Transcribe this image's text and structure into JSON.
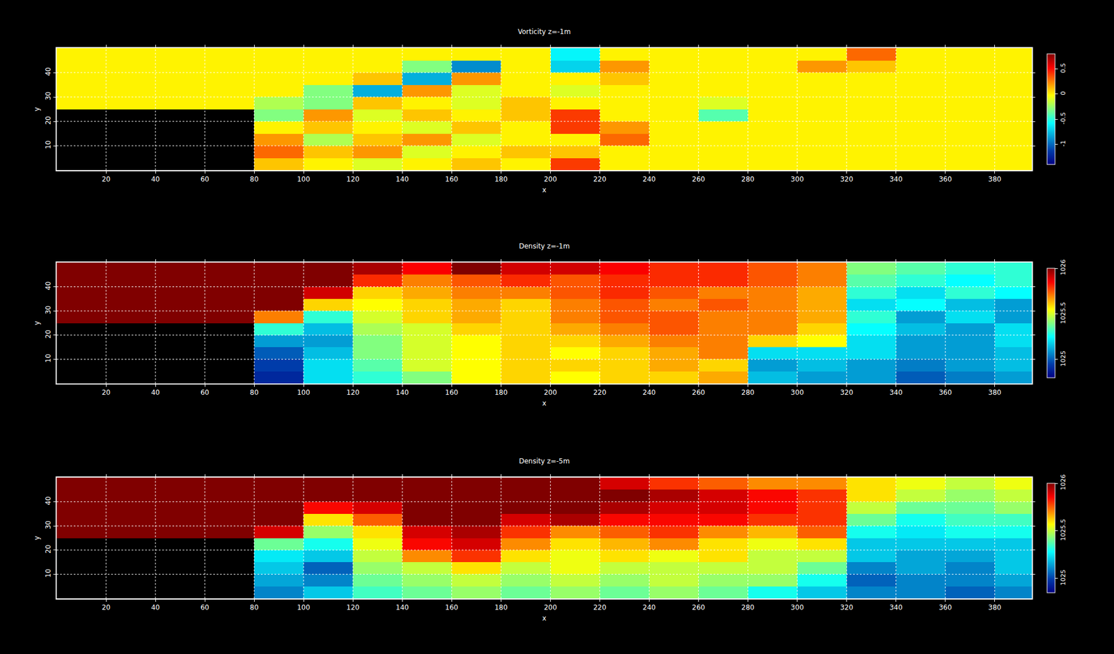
{
  "chart_data": [
    {
      "type": "heatmap",
      "title": "Vorticity z=-1m",
      "x_label": "x",
      "y_label": "y",
      "color": "Jet",
      "grid": true,
      "xlim": [
        0,
        395
      ],
      "ylim": [
        0,
        50
      ],
      "xticks": [
        20,
        40,
        60,
        80,
        100,
        120,
        140,
        160,
        180,
        200,
        220,
        240,
        260,
        280,
        300,
        320,
        340,
        360,
        380
      ],
      "yticks": [
        10,
        20,
        30,
        40
      ],
      "colorbar_range": [
        -1.4,
        0.8
      ],
      "colorbar_ticks": [
        -1,
        -0.5,
        0,
        0.5
      ],
      "x": [
        10,
        30,
        50,
        70,
        90,
        110,
        130,
        150,
        170,
        190,
        210,
        230,
        250,
        270,
        290,
        310,
        330,
        350,
        370,
        390
      ],
      "y": [
        2.5,
        7.5,
        12.5,
        17.5,
        22.5,
        27.5,
        32.5,
        37.5,
        42.5,
        47.5
      ],
      "cells": [
        [
          null,
          null,
          null,
          null,
          0.1,
          0,
          -0.1,
          0,
          0.1,
          0,
          0.4,
          0,
          0,
          0,
          0,
          0,
          0,
          0,
          0,
          0
        ],
        [
          null,
          null,
          null,
          null,
          0.3,
          0.1,
          0.2,
          -0.1,
          0,
          0.1,
          0.1,
          0,
          0,
          0,
          0,
          0,
          0,
          0,
          0,
          0
        ],
        [
          null,
          null,
          null,
          null,
          0.2,
          -0.2,
          0.1,
          0.2,
          -0.1,
          0,
          0,
          0.3,
          0,
          0,
          0,
          0,
          0,
          0,
          0,
          0
        ],
        [
          null,
          null,
          null,
          null,
          0,
          0.1,
          0,
          -0.1,
          0.1,
          0,
          0.4,
          0.2,
          0,
          0,
          0,
          0,
          0,
          0,
          0,
          0
        ],
        [
          null,
          null,
          null,
          null,
          -0.3,
          0.2,
          -0.1,
          0.1,
          0,
          0.1,
          0.4,
          0,
          0,
          -0.4,
          0,
          0,
          0,
          0,
          0,
          0
        ],
        [
          0,
          0,
          0,
          0,
          -0.2,
          -0.3,
          0.1,
          0,
          -0.1,
          0.1,
          0,
          0,
          0,
          -0.1,
          0,
          0,
          0,
          0,
          0,
          0
        ],
        [
          0,
          0,
          0,
          0,
          0,
          -0.3,
          -0.8,
          0.2,
          -0.1,
          0,
          -0.1,
          0,
          0,
          0,
          0,
          0,
          0,
          0,
          0,
          0
        ],
        [
          0,
          0,
          0,
          0,
          0,
          0,
          0.1,
          -0.8,
          0.2,
          0,
          0,
          0.1,
          0,
          0,
          0,
          0,
          0,
          0,
          0,
          0
        ],
        [
          0,
          0,
          0,
          0,
          0,
          0,
          0,
          -0.3,
          -0.9,
          0,
          -0.7,
          0.2,
          0,
          0,
          0,
          0.2,
          0.1,
          0,
          0,
          0
        ],
        [
          0,
          0,
          0,
          0,
          0,
          0,
          0,
          0,
          0,
          0,
          -0.6,
          0,
          0,
          0,
          0,
          0,
          0.3,
          0,
          0,
          0
        ]
      ]
    },
    {
      "type": "heatmap",
      "title": "Density z=-1m",
      "x_label": "x",
      "y_label": "y",
      "color": "Jet",
      "grid": true,
      "xlim": [
        0,
        395
      ],
      "ylim": [
        0,
        50
      ],
      "xticks": [
        20,
        40,
        60,
        80,
        100,
        120,
        140,
        160,
        180,
        200,
        220,
        240,
        260,
        280,
        300,
        320,
        340,
        360,
        380
      ],
      "yticks": [
        10,
        20,
        30,
        40
      ],
      "colorbar_range": [
        1024.8,
        1026
      ],
      "colorbar_ticks": [
        1025,
        1025.5,
        1026
      ],
      "x": [
        10,
        30,
        50,
        70,
        90,
        110,
        130,
        150,
        170,
        190,
        210,
        230,
        250,
        270,
        290,
        310,
        330,
        350,
        370,
        390
      ],
      "y": [
        2.5,
        7.5,
        12.5,
        17.5,
        22.5,
        27.5,
        32.5,
        37.5,
        42.5,
        47.5
      ],
      "cells": [
        [
          null,
          null,
          null,
          null,
          1024.9,
          1025.2,
          1025.3,
          1025.4,
          1025.55,
          1025.6,
          1025.55,
          1025.6,
          1025.6,
          1025.65,
          1025.15,
          1025.1,
          1025.1,
          1025.0,
          1025.05,
          1025.1
        ],
        [
          null,
          null,
          null,
          null,
          1024.95,
          1025.2,
          1025.35,
          1025.5,
          1025.55,
          1025.6,
          1025.6,
          1025.6,
          1025.65,
          1025.6,
          1025.1,
          1025.15,
          1025.1,
          1025.05,
          1025.1,
          1025.15
        ],
        [
          null,
          null,
          null,
          null,
          1025.0,
          1025.15,
          1025.4,
          1025.5,
          1025.55,
          1025.6,
          1025.55,
          1025.6,
          1025.65,
          1025.7,
          1025.2,
          1025.2,
          1025.2,
          1025.1,
          1025.1,
          1025.15
        ],
        [
          null,
          null,
          null,
          null,
          1025.1,
          1025.1,
          1025.4,
          1025.5,
          1025.55,
          1025.6,
          1025.6,
          1025.65,
          1025.7,
          1025.7,
          1025.6,
          1025.55,
          1025.2,
          1025.1,
          1025.1,
          1025.2
        ],
        [
          null,
          null,
          null,
          null,
          1025.3,
          1025.15,
          1025.45,
          1025.5,
          1025.6,
          1025.6,
          1025.65,
          1025.7,
          1025.75,
          1025.7,
          1025.7,
          1025.6,
          1025.25,
          1025.15,
          1025.1,
          1025.2
        ],
        [
          1026,
          1026,
          1026,
          1026,
          1025.7,
          1025.3,
          1025.5,
          1025.6,
          1025.65,
          1025.6,
          1025.7,
          1025.75,
          1025.75,
          1025.7,
          1025.7,
          1025.65,
          1025.3,
          1025.1,
          1025.2,
          1025.1
        ],
        [
          1026,
          1026,
          1026,
          1026,
          1026,
          1025.6,
          1025.55,
          1025.6,
          1025.65,
          1025.6,
          1025.7,
          1025.75,
          1025.7,
          1025.75,
          1025.7,
          1025.65,
          1025.2,
          1025.25,
          1025.15,
          1025.1
        ],
        [
          1026,
          1026,
          1026,
          1026,
          1026,
          1025.9,
          1025.6,
          1025.65,
          1025.7,
          1025.7,
          1025.75,
          1025.8,
          1025.75,
          1025.7,
          1025.7,
          1025.65,
          1025.3,
          1025.2,
          1025.3,
          1025.25
        ],
        [
          1026,
          1026,
          1026,
          1026,
          1026,
          1026,
          1025.8,
          1025.7,
          1025.75,
          1025.8,
          1025.75,
          1025.8,
          1025.8,
          1025.8,
          1025.75,
          1025.7,
          1025.35,
          1025.3,
          1025.25,
          1025.3
        ],
        [
          1026,
          1026,
          1026,
          1026,
          1026,
          1026,
          1025.95,
          1025.85,
          1026,
          1025.9,
          1025.9,
          1025.85,
          1025.8,
          1025.8,
          1025.75,
          1025.7,
          1025.4,
          1025.35,
          1025.3,
          1025.3
        ]
      ]
    },
    {
      "type": "heatmap",
      "title": "Density z=-5m",
      "x_label": "x",
      "y_label": "y",
      "color": "Jet",
      "grid": true,
      "xlim": [
        0,
        395
      ],
      "ylim": [
        0,
        50
      ],
      "xticks": [
        20,
        40,
        60,
        80,
        100,
        120,
        140,
        160,
        180,
        200,
        220,
        240,
        260,
        280,
        300,
        320,
        340,
        360,
        380
      ],
      "yticks": [
        10,
        20,
        30,
        40
      ],
      "colorbar_range": [
        1024.85,
        1026
      ],
      "colorbar_ticks": [
        1025,
        1025.5,
        1026
      ],
      "x": [
        10,
        30,
        50,
        70,
        90,
        110,
        130,
        150,
        170,
        190,
        210,
        230,
        250,
        270,
        290,
        310,
        330,
        350,
        370,
        390
      ],
      "y": [
        2.5,
        7.5,
        12.5,
        17.5,
        22.5,
        27.5,
        32.5,
        37.5,
        42.5,
        47.5
      ],
      "cells": [
        [
          null,
          null,
          null,
          null,
          1025.1,
          1025.2,
          1025.35,
          1025.4,
          1025.45,
          1025.4,
          1025.45,
          1025.4,
          1025.45,
          1025.4,
          1025.3,
          1025.2,
          1025.1,
          1025.1,
          1025.05,
          1025.1
        ],
        [
          null,
          null,
          null,
          null,
          1025.15,
          1025.1,
          1025.4,
          1025.45,
          1025.5,
          1025.45,
          1025.5,
          1025.45,
          1025.5,
          1025.45,
          1025.45,
          1025.3,
          1025.05,
          1025.1,
          1025.1,
          1025.15
        ],
        [
          null,
          null,
          null,
          null,
          1025.2,
          1025.05,
          1025.45,
          1025.5,
          1025.6,
          1025.5,
          1025.55,
          1025.5,
          1025.5,
          1025.5,
          1025.5,
          1025.4,
          1025.1,
          1025.15,
          1025.1,
          1025.2
        ],
        [
          null,
          null,
          null,
          null,
          1025.25,
          1025.2,
          1025.5,
          1025.7,
          1025.8,
          1025.6,
          1025.55,
          1025.6,
          1025.55,
          1025.6,
          1025.5,
          1025.5,
          1025.2,
          1025.15,
          1025.15,
          1025.2
        ],
        [
          null,
          null,
          null,
          null,
          1025.4,
          1025.3,
          1025.55,
          1025.85,
          1025.9,
          1025.7,
          1025.6,
          1025.65,
          1025.7,
          1025.6,
          1025.55,
          1025.6,
          1025.2,
          1025.2,
          1025.2,
          1025.2
        ],
        [
          1026,
          1026,
          1026,
          1026,
          1025.9,
          1025.45,
          1025.6,
          1025.9,
          1025.95,
          1025.8,
          1025.7,
          1025.75,
          1025.8,
          1025.7,
          1025.65,
          1025.75,
          1025.3,
          1025.25,
          1025.3,
          1025.3
        ],
        [
          1026,
          1026,
          1026,
          1026,
          1026,
          1025.6,
          1025.75,
          1026,
          1026,
          1025.9,
          1025.95,
          1025.85,
          1025.85,
          1025.85,
          1025.8,
          1025.8,
          1025.4,
          1025.3,
          1025.35,
          1025.35
        ],
        [
          1026,
          1026,
          1026,
          1026,
          1026,
          1025.85,
          1025.9,
          1026,
          1026,
          1026,
          1026,
          1025.95,
          1025.9,
          1025.9,
          1025.85,
          1025.8,
          1025.5,
          1025.4,
          1025.4,
          1025.45
        ],
        [
          1026,
          1026,
          1026,
          1026,
          1026,
          1026,
          1026,
          1026,
          1026,
          1026,
          1026,
          1026,
          1025.95,
          1025.9,
          1025.85,
          1025.8,
          1025.6,
          1025.5,
          1025.45,
          1025.5
        ],
        [
          1026,
          1026,
          1026,
          1026,
          1026,
          1026,
          1026,
          1026,
          1026,
          1026,
          1026,
          1025.9,
          1025.8,
          1025.75,
          1025.7,
          1025.7,
          1025.6,
          1025.55,
          1025.5,
          1025.55
        ]
      ]
    }
  ]
}
